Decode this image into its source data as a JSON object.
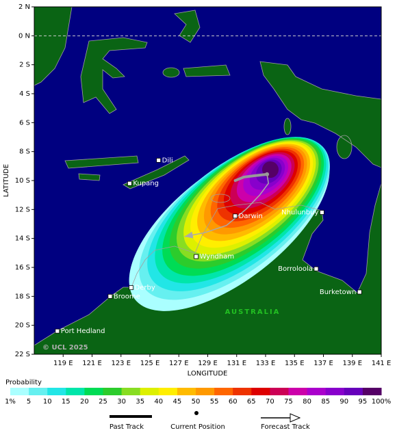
{
  "map": {
    "xlabel": "LONGITUDE",
    "ylabel": "LATITUDE",
    "xlim": [
      117,
      141
    ],
    "ylim": [
      -22,
      2
    ],
    "xticks": [
      {
        "value": 119,
        "label": "119 E"
      },
      {
        "value": 121,
        "label": "121 E"
      },
      {
        "value": 123,
        "label": "123 E"
      },
      {
        "value": 125,
        "label": "125 E"
      },
      {
        "value": 127,
        "label": "127 E"
      },
      {
        "value": 129,
        "label": "129 E"
      },
      {
        "value": 131,
        "label": "131 E"
      },
      {
        "value": 133,
        "label": "133 E"
      },
      {
        "value": 135,
        "label": "135 E"
      },
      {
        "value": 137,
        "label": "137 E"
      },
      {
        "value": 139,
        "label": "139 E"
      },
      {
        "value": 141,
        "label": "141 E"
      }
    ],
    "yticks": [
      {
        "value": 2,
        "label": "2 N"
      },
      {
        "value": 0,
        "label": "0 N"
      },
      {
        "value": -2,
        "label": "2 S"
      },
      {
        "value": -4,
        "label": "4 S"
      },
      {
        "value": -6,
        "label": "6 S"
      },
      {
        "value": -8,
        "label": "8 S"
      },
      {
        "value": -10,
        "label": "10 S"
      },
      {
        "value": -12,
        "label": "12 S"
      },
      {
        "value": -14,
        "label": "14 S"
      },
      {
        "value": -16,
        "label": "16 S"
      },
      {
        "value": -18,
        "label": "18 S"
      },
      {
        "value": -20,
        "label": "20 S"
      },
      {
        "value": -22,
        "label": "22 S"
      }
    ],
    "places": [
      {
        "name": "Dili",
        "lon": 125.6,
        "lat": -8.6
      },
      {
        "name": "Kupang",
        "lon": 123.6,
        "lat": -10.2
      },
      {
        "name": "Darwin",
        "lon": 130.9,
        "lat": -12.45
      },
      {
        "name": "Nhulunbuy",
        "lon": 136.9,
        "lat": -12.2
      },
      {
        "name": "Wyndham",
        "lon": 128.2,
        "lat": -15.25
      },
      {
        "name": "Derby",
        "lon": 123.7,
        "lat": -17.4
      },
      {
        "name": "Broome",
        "lon": 122.25,
        "lat": -18.0
      },
      {
        "name": "Borroloola",
        "lon": 136.5,
        "lat": -16.1
      },
      {
        "name": "Burketown",
        "lon": 139.5,
        "lat": -17.7
      },
      {
        "name": "Port Hedland",
        "lon": 118.6,
        "lat": -20.4
      }
    ],
    "region_label": "AUSTRALIA",
    "copyright": "© UCL 2025",
    "track": {
      "past": {
        "lon": [
          133.1,
          132.2,
          131.5,
          130.9
        ],
        "lat": [
          -9.57,
          -9.67,
          -9.76,
          -10.0
        ]
      },
      "current": {
        "lon": 133.1,
        "lat": -9.57
      },
      "forecast": {
        "lon": [
          133.1,
          133.2,
          132.6,
          131.7,
          130.3,
          128.8,
          127.4
        ],
        "lat": [
          -9.57,
          -10.19,
          -10.99,
          -11.94,
          -13.1,
          -13.6,
          -13.87
        ]
      }
    }
  },
  "legend": {
    "title": "Probability",
    "labels": [
      "1%",
      "5",
      "10",
      "15",
      "20",
      "25",
      "30",
      "35",
      "40",
      "45",
      "50",
      "55",
      "60",
      "65",
      "70",
      "75",
      "80",
      "85",
      "90",
      "95",
      "100%"
    ],
    "colors": [
      "#aaffff",
      "#66f0f0",
      "#22e6e6",
      "#00e6aa",
      "#00dc55",
      "#2ccc2c",
      "#88dd22",
      "#ddf000",
      "#ffee00",
      "#ffbb00",
      "#ff9900",
      "#ff6600",
      "#ee3300",
      "#dd0000",
      "#cc0055",
      "#cc00aa",
      "#aa00cc",
      "#8800cc",
      "#6600bb",
      "#550066"
    ]
  },
  "track_legend": [
    "Past Track",
    "Current Position",
    "Forecast Track"
  ]
}
